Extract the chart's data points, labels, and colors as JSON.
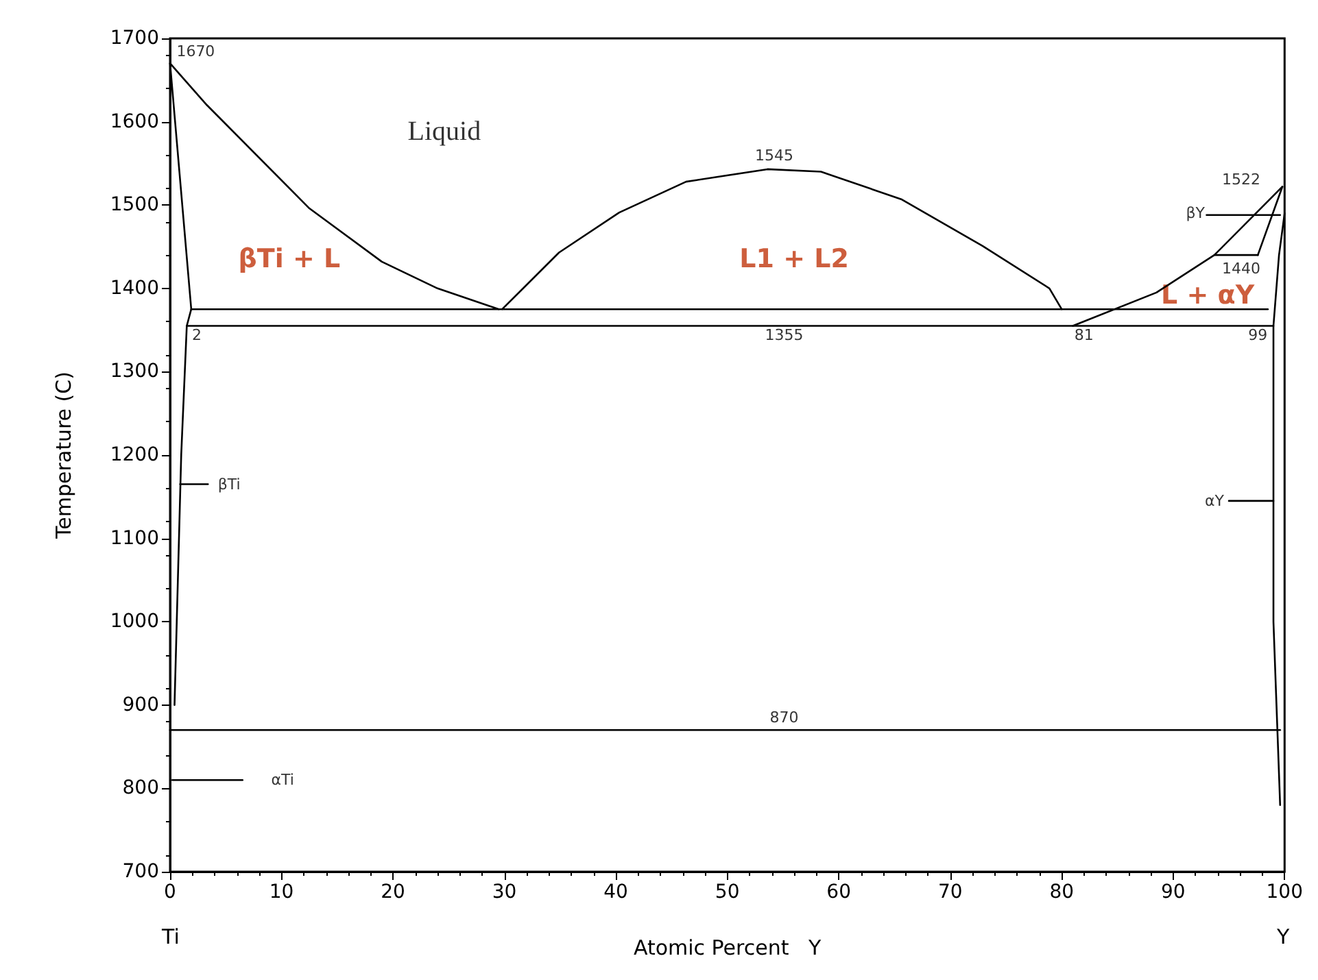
{
  "chart_data": {
    "type": "line",
    "xlabel": "Atomic Percent   Y",
    "ylabel": "Temperature (C)",
    "xlim": [
      0,
      100
    ],
    "ylim": [
      700,
      1700
    ],
    "xticks": [
      0,
      10,
      20,
      30,
      40,
      50,
      60,
      70,
      80,
      90,
      100
    ],
    "yticks": [
      700,
      800,
      900,
      1000,
      1100,
      1200,
      1300,
      1400,
      1500,
      1600,
      1700
    ],
    "grid": false,
    "marker": "none",
    "line_style": "solid",
    "series": [
      {
        "color": "#000000",
        "x": [
          0,
          3.3,
          12.5,
          19,
          24,
          29.5
        ],
        "values": [
          1670,
          1620,
          1496,
          1432,
          1400,
          1375
        ]
      },
      {
        "color": "#000000",
        "x": [
          29.8,
          34.9,
          40.3,
          46.3,
          53.6,
          58.4,
          65.6,
          72.9,
          78.9,
          80
        ],
        "values": [
          1375,
          1443,
          1491,
          1528,
          1543,
          1540,
          1507,
          1451,
          1400,
          1375
        ]
      },
      {
        "color": "#000000",
        "x": [
          81,
          88.5,
          93.7,
          99.8
        ],
        "values": [
          1355,
          1395,
          1440,
          1522
        ]
      },
      {
        "color": "#000000",
        "x": [
          1.9,
          98.5
        ],
        "values": [
          1375,
          1375
        ]
      },
      {
        "color": "#000000",
        "x": [
          1.5,
          99
        ],
        "values": [
          1355,
          1355
        ]
      },
      {
        "color": "#000000",
        "x": [
          93.7,
          97.6
        ],
        "values": [
          1440,
          1440
        ]
      },
      {
        "color": "#000000",
        "x": [
          97.6,
          99.8
        ],
        "values": [
          1440,
          1522
        ]
      },
      {
        "color": "#000000",
        "x": [
          100,
          99.5,
          99,
          99,
          99.6
        ],
        "values": [
          1490,
          1440,
          1355,
          1000,
          780
        ]
      },
      {
        "color": "#000000",
        "x": [
          0,
          1.9,
          1.5,
          1,
          0.6,
          0.4
        ],
        "values": [
          1670,
          1375,
          1355,
          1200,
          1000,
          900
        ]
      },
      {
        "color": "#000000",
        "x": [
          0,
          99.6
        ],
        "values": [
          870,
          870
        ]
      },
      {
        "color": "#000000",
        "x": [
          0.9,
          3.4
        ],
        "values": [
          1165,
          1165
        ]
      },
      {
        "color": "#000000",
        "x": [
          95,
          99
        ],
        "values": [
          1145,
          1145
        ]
      },
      {
        "color": "#000000",
        "x": [
          0.2,
          6.5
        ],
        "values": [
          810,
          810
        ]
      },
      {
        "color": "#000000",
        "x": [
          93,
          99.6
        ],
        "values": [
          1488,
          1488
        ]
      }
    ],
    "annotations": [
      "1670",
      "Liquid",
      "βTi + L",
      "L1 + L2",
      "1545",
      "1522",
      "βY",
      "1440",
      "L + αY",
      "2",
      "1355",
      "81",
      "99",
      "βTi",
      "αY",
      "870",
      "αTi",
      "Ti",
      "Y"
    ]
  }
}
